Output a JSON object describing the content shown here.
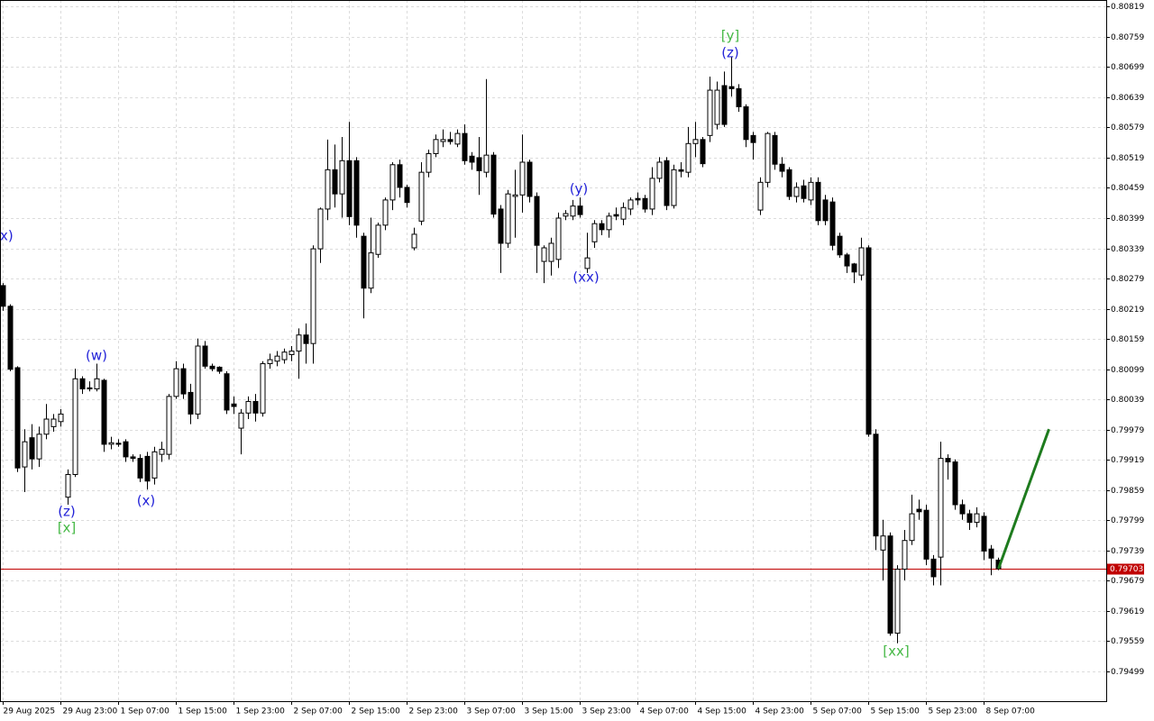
{
  "chart_data": {
    "type": "candlestick",
    "categories": [
      "29 Aug 2025",
      null,
      null,
      null,
      null,
      null,
      null,
      null,
      "29 Aug 23:00",
      null,
      null,
      null,
      null,
      null,
      null,
      null,
      "1 Sep 07:00",
      null,
      null,
      null,
      null,
      null,
      null,
      null,
      "1 Sep 15:00",
      null,
      null,
      null,
      null,
      null,
      null,
      null,
      "1 Sep 23:00",
      null,
      null,
      null,
      null,
      null,
      null,
      null,
      "2 Sep 07:00",
      null,
      null,
      null,
      null,
      null,
      null,
      null,
      "2 Sep 15:00",
      null,
      null,
      null,
      null,
      null,
      null,
      null,
      "2 Sep 23:00",
      null,
      null,
      null,
      null,
      null,
      null,
      null,
      "3 Sep 07:00",
      null,
      null,
      null,
      null,
      null,
      null,
      null,
      "3 Sep 15:00",
      null,
      null,
      null,
      null,
      null,
      null,
      null,
      "3 Sep 23:00",
      null,
      null,
      null,
      null,
      null,
      null,
      null,
      "4 Sep 07:00",
      null,
      null,
      null,
      null,
      null,
      null,
      null,
      "4 Sep 15:00",
      null,
      null,
      null,
      null,
      null,
      null,
      null,
      "4 Sep 23:00",
      null,
      null,
      null,
      null,
      null,
      null,
      null,
      "5 Sep 07:00",
      null,
      null,
      null,
      null,
      null,
      null,
      null,
      "5 Sep 15:00",
      null,
      null,
      null,
      null,
      null,
      null,
      null,
      "5 Sep 23:00",
      null,
      null,
      null,
      null,
      null,
      null,
      null,
      "8 Sep 07:00",
      null,
      null
    ],
    "open": [
      0.80265,
      0.80224,
      0.80102,
      0.79905,
      0.79963,
      0.79921,
      0.7997,
      0.79985,
      0.79995,
      0.79845,
      0.7989,
      0.8008,
      0.80062,
      0.8006,
      0.80077,
      0.7995,
      0.79952,
      0.79955,
      0.79925,
      0.79922,
      0.79926,
      0.79883,
      0.7993,
      0.7993,
      0.80045,
      0.801,
      0.80053,
      0.8001,
      0.80145,
      0.80105,
      0.80103,
      0.8009,
      0.8003,
      0.79982,
      0.80012,
      0.80035,
      0.80012,
      0.8011,
      0.80115,
      0.80118,
      0.80128,
      0.80135,
      0.80167,
      0.8015,
      0.80338,
      0.80417,
      0.80495,
      0.80447,
      0.80513,
      0.80513,
      0.80363,
      0.8026,
      0.80327,
      0.80385,
      0.80435,
      0.80505,
      0.8046,
      0.8034,
      0.80393,
      0.8049,
      0.80527,
      0.80551,
      0.80555,
      0.80546,
      0.80567,
      0.80522,
      0.80519,
      0.8049,
      0.80524,
      0.80417,
      0.80349,
      0.80442,
      0.80445,
      0.8051,
      0.80442,
      0.80313,
      0.80313,
      0.80317,
      0.80403,
      0.80403,
      0.80423,
      0.80299,
      0.80352,
      0.80388,
      0.80376,
      0.80406,
      0.80397,
      0.80417,
      0.80438,
      0.80438,
      0.80417,
      0.80478,
      0.80513,
      0.80424,
      0.80495,
      0.8049,
      0.80547,
      0.80555,
      0.80563,
      0.80585,
      0.80662,
      0.8066,
      0.80656,
      0.8062,
      0.80563,
      0.80415,
      0.8047,
      0.80563,
      0.80506,
      0.80495,
      0.80442,
      0.80463,
      0.80435,
      0.8047,
      0.80435,
      0.80431,
      0.80363,
      0.80326,
      0.80308,
      0.80286,
      0.8034,
      0.7997,
      0.7974,
      0.79768,
      0.79575,
      0.79702,
      0.79759,
      0.79821,
      0.79819,
      0.79722,
      0.79726,
      0.79922,
      0.79915,
      0.7983,
      0.79812,
      0.79795,
      0.79807,
      0.79742,
      0.7972
    ],
    "high": [
      0.8027,
      0.80228,
      0.80105,
      0.7998,
      0.7999,
      0.79985,
      0.8003,
      0.8001,
      0.8002,
      0.799,
      0.801,
      0.80085,
      0.80075,
      0.8011,
      0.8008,
      0.79965,
      0.7996,
      0.7996,
      0.7993,
      0.7993,
      0.79935,
      0.79945,
      0.79955,
      0.8005,
      0.80115,
      0.8011,
      0.8007,
      0.8016,
      0.80155,
      0.8011,
      0.80105,
      0.80095,
      0.80045,
      0.8002,
      0.80045,
      0.8005,
      0.80115,
      0.8013,
      0.80135,
      0.8014,
      0.80145,
      0.8018,
      0.8019,
      0.80345,
      0.8042,
      0.80555,
      0.80545,
      0.8056,
      0.8059,
      0.8052,
      0.8037,
      0.804,
      0.8039,
      0.8044,
      0.8051,
      0.80515,
      0.80465,
      0.8038,
      0.8051,
      0.80535,
      0.80565,
      0.80575,
      0.8057,
      0.80575,
      0.80585,
      0.8053,
      0.8056,
      0.80675,
      0.8053,
      0.80425,
      0.80455,
      0.80495,
      0.80565,
      0.80515,
      0.8045,
      0.80345,
      0.8036,
      0.8041,
      0.80415,
      0.80435,
      0.8044,
      0.8037,
      0.80395,
      0.80395,
      0.8041,
      0.8042,
      0.8043,
      0.8044,
      0.8045,
      0.80445,
      0.805,
      0.8052,
      0.8052,
      0.80505,
      0.8051,
      0.8058,
      0.8059,
      0.8056,
      0.8068,
      0.8067,
      0.8069,
      0.8072,
      0.80665,
      0.80625,
      0.8057,
      0.8048,
      0.8057,
      0.8057,
      0.8052,
      0.805,
      0.8047,
      0.80475,
      0.8048,
      0.8048,
      0.80445,
      0.8044,
      0.8037,
      0.8033,
      0.8031,
      0.8036,
      0.80345,
      0.7998,
      0.798,
      0.79775,
      0.7971,
      0.7978,
      0.7985,
      0.7984,
      0.7983,
      0.7973,
      0.79955,
      0.7993,
      0.7992,
      0.7984,
      0.7982,
      0.79825,
      0.79815,
      0.7975,
      0.79725
    ],
    "low": [
      0.80215,
      0.80095,
      0.79895,
      0.79855,
      0.799,
      0.79905,
      0.7996,
      0.79975,
      0.79985,
      0.7983,
      0.79885,
      0.8005,
      0.80055,
      0.80055,
      0.79935,
      0.7994,
      0.79945,
      0.79915,
      0.79915,
      0.79875,
      0.7986,
      0.7987,
      0.79915,
      0.7992,
      0.8004,
      0.8004,
      0.7999,
      0.8,
      0.801,
      0.80095,
      0.8009,
      0.8001,
      0.8001,
      0.7993,
      0.8,
      0.79995,
      0.80005,
      0.801,
      0.80105,
      0.8011,
      0.80115,
      0.8008,
      0.8011,
      0.8011,
      0.8031,
      0.80395,
      0.8042,
      0.804,
      0.80385,
      0.8036,
      0.802,
      0.8025,
      0.8032,
      0.80375,
      0.80415,
      0.8044,
      0.8042,
      0.80335,
      0.80385,
      0.8048,
      0.8052,
      0.8054,
      0.80545,
      0.8054,
      0.80505,
      0.80495,
      0.80445,
      0.8048,
      0.804,
      0.8029,
      0.8034,
      0.8036,
      0.8041,
      0.8043,
      0.8029,
      0.8027,
      0.80285,
      0.803,
      0.80395,
      0.80395,
      0.804,
      0.8029,
      0.8034,
      0.80365,
      0.8036,
      0.80395,
      0.80385,
      0.80405,
      0.80425,
      0.8041,
      0.80405,
      0.8047,
      0.80415,
      0.80418,
      0.8048,
      0.8048,
      0.8052,
      0.805,
      0.8055,
      0.80575,
      0.8058,
      0.8064,
      0.8061,
      0.8054,
      0.80515,
      0.80405,
      0.8046,
      0.80495,
      0.8048,
      0.80435,
      0.8043,
      0.8043,
      0.80425,
      0.80385,
      0.80385,
      0.80335,
      0.8032,
      0.8029,
      0.8027,
      0.80275,
      0.79965,
      0.7974,
      0.7968,
      0.7957,
      0.79555,
      0.7968,
      0.7975,
      0.798,
      0.7971,
      0.7967,
      0.7967,
      0.7988,
      0.7982,
      0.798,
      0.7978,
      0.79785,
      0.7972,
      0.7969,
      0.797
    ],
    "close": [
      0.80224,
      0.80099,
      0.79903,
      0.79955,
      0.79921,
      0.7997,
      0.8,
      0.8,
      0.8001,
      0.7989,
      0.8008,
      0.8006,
      0.8006,
      0.8008,
      0.7995,
      0.79953,
      0.7995,
      0.79925,
      0.79922,
      0.79883,
      0.79877,
      0.79935,
      0.7994,
      0.80045,
      0.801,
      0.8005,
      0.8001,
      0.80145,
      0.80105,
      0.801,
      0.80095,
      0.80018,
      0.80025,
      0.80012,
      0.80035,
      0.80012,
      0.8011,
      0.80118,
      0.80125,
      0.80133,
      0.80135,
      0.80167,
      0.8015,
      0.80338,
      0.80417,
      0.80495,
      0.80447,
      0.80513,
      0.80402,
      0.80385,
      0.8026,
      0.8033,
      0.80385,
      0.80435,
      0.80505,
      0.8046,
      0.8043,
      0.80367,
      0.8049,
      0.80527,
      0.80555,
      0.80555,
      0.80551,
      0.80567,
      0.80513,
      0.8051,
      0.80493,
      0.80524,
      0.80407,
      0.80349,
      0.80447,
      0.80445,
      0.8051,
      0.80442,
      0.80345,
      0.8034,
      0.80349,
      0.80399,
      0.80408,
      0.80423,
      0.80406,
      0.8032,
      0.80388,
      0.80376,
      0.80403,
      0.80403,
      0.8042,
      0.80435,
      0.80435,
      0.80417,
      0.80478,
      0.8051,
      0.80424,
      0.80495,
      0.80492,
      0.80547,
      0.80555,
      0.80507,
      0.80653,
      0.80653,
      0.80585,
      0.80656,
      0.8062,
      0.80555,
      0.80549,
      0.8047,
      0.80567,
      0.80506,
      0.80492,
      0.80442,
      0.8046,
      0.80438,
      0.8047,
      0.80394,
      0.80394,
      0.80345,
      0.80326,
      0.80304,
      0.80292,
      0.8034,
      0.7997,
      0.79768,
      0.79768,
      0.79575,
      0.79702,
      0.79759,
      0.79812,
      0.79816,
      0.79722,
      0.79687,
      0.79922,
      0.79915,
      0.7983,
      0.79812,
      0.79795,
      0.79812,
      0.79738,
      0.79724,
      0.79703
    ],
    "up_color": "#ffffff",
    "down_color": "#000000",
    "ylim": [
      0.7944,
      0.80832
    ],
    "yticks": [
      0.80819,
      0.80759,
      0.80699,
      0.80639,
      0.80579,
      0.80519,
      0.80459,
      0.80399,
      0.80339,
      0.80279,
      0.80219,
      0.80159,
      0.80099,
      0.80039,
      0.79979,
      0.79919,
      0.79859,
      0.79799,
      0.79739,
      0.79679,
      0.79619,
      0.79559,
      0.79499
    ],
    "grid": true,
    "current_price": 0.79703,
    "current_price_color": "#c00000",
    "forecast": {
      "x": [
        138,
        145
      ],
      "values": [
        0.79703,
        0.7998
      ],
      "color": "#1e7b1e"
    },
    "annotations": [
      {
        "text": "x)",
        "color": "#2323d8"
      },
      {
        "text": "(w)",
        "color": "#2323d8"
      },
      {
        "text": "(z)",
        "color": "#2323d8"
      },
      {
        "text": "[x]",
        "color": "#45b845"
      },
      {
        "text": "(x)",
        "color": "#2323d8"
      },
      {
        "text": "(y)",
        "color": "#2323d8"
      },
      {
        "text": "(xx)",
        "color": "#2323d8"
      },
      {
        "text": "[y]",
        "color": "#45b845"
      },
      {
        "text": "(z)",
        "color": "#2323d8"
      },
      {
        "text": "[xx]",
        "color": "#45b845"
      }
    ]
  }
}
